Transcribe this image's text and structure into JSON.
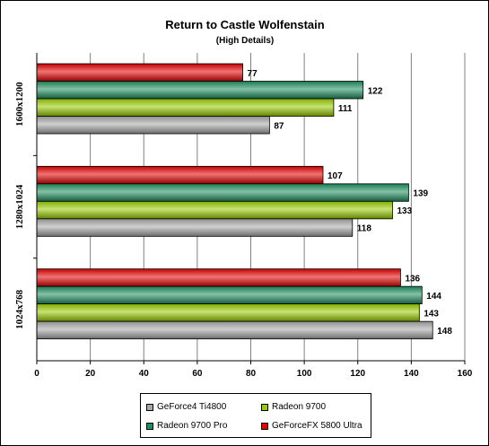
{
  "chart_data": {
    "type": "bar",
    "orientation": "horizontal",
    "title": "Return to Castle Wolfenstain",
    "subtitle": "(High Details)",
    "categories": [
      "1600x1200",
      "1280x1024",
      "1024x768"
    ],
    "series": [
      {
        "name": "GeForce4 Ti4800",
        "color": "#a8a8a8",
        "values": [
          87,
          118,
          148
        ]
      },
      {
        "name": "Radeon 9700",
        "color": "#99cc00",
        "values": [
          111,
          133,
          143
        ]
      },
      {
        "name": "Radeon 9700 Pro",
        "color": "#1f8f5f",
        "values": [
          122,
          139,
          144
        ]
      },
      {
        "name": "GeForceFX 5800 Ultra",
        "color": "#e60000",
        "values": [
          77,
          107,
          136
        ]
      }
    ],
    "xlim": [
      0,
      160
    ],
    "xticks": [
      0,
      20,
      40,
      60,
      80,
      100,
      120,
      140,
      160
    ],
    "grid": true,
    "legend_position": "bottom",
    "show_data_labels": true
  },
  "legend": [
    {
      "label": "GeForce4 Ti4800",
      "color": "#a8a8a8"
    },
    {
      "label": "Radeon 9700",
      "color": "#99cc00"
    },
    {
      "label": "Radeon 9700 Pro",
      "color": "#1f8f5f"
    },
    {
      "label": "GeForceFX 5800 Ultra",
      "color": "#e60000"
    }
  ]
}
